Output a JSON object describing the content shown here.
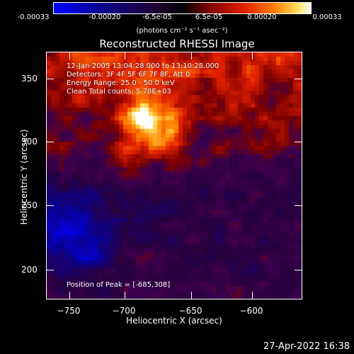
{
  "colorbar": {
    "ticks": [
      "-0.00033",
      "-0.00020",
      "-6.5e-05",
      "6.5e-05",
      "0.00020",
      "0.00033"
    ],
    "units": "(photons cm⁻² s⁻¹ asec⁻²)"
  },
  "title": "Reconstructed RHESSI Image",
  "info": {
    "time": "12-Jan-2005 13:04:28.000 to 13:10:28.000",
    "detectors": "Detectors: 3F 4F 5F 6F 7F 8F, Att 0",
    "energy": "Energy Range: 25.0 - 50.0 keV",
    "clean": "Clean     Total counts: 5.78E+03"
  },
  "peak": "Position of Peak = [-685,308]",
  "axes": {
    "x_ticks": [
      "−750",
      "−700",
      "−650",
      "−600"
    ],
    "y_ticks": [
      "350",
      "300",
      "250",
      "200"
    ],
    "xlabel": "Heliocentric X (arcsec)",
    "ylabel": "Heliocentric Y (arcsec)"
  },
  "timestamp": "27-Apr-2022 16:38",
  "colors": {
    "background": "#000000",
    "foreground": "#ffffff"
  }
}
